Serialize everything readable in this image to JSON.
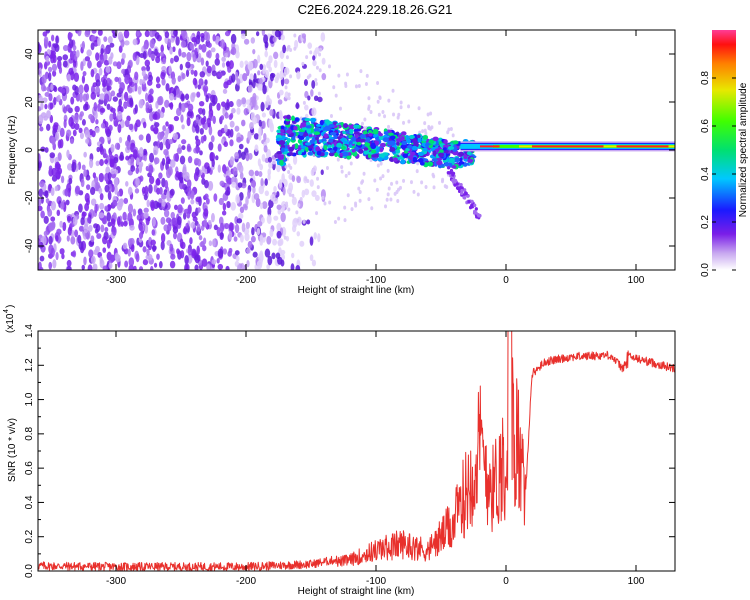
{
  "title": "C2E6.2024.229.18.26.G21",
  "chart_data": [
    {
      "type": "heatmap",
      "xlabel": "Height of straight line (km)",
      "ylabel": "Frequency (Hz)",
      "xlim": [
        -360,
        130
      ],
      "ylim": [
        -50,
        50
      ],
      "xticks": [
        "-300",
        "-200",
        "-100",
        "0",
        "100"
      ],
      "xtick_values": [
        -300,
        -200,
        -100,
        0,
        100
      ],
      "yticks": [
        "-40",
        "-20",
        "0",
        "20",
        "40"
      ],
      "ytick_values": [
        -40,
        -20,
        0,
        20,
        40
      ],
      "colorbar": {
        "label": "Normalized spectral amplitude",
        "range": [
          0,
          1
        ],
        "ticks": [
          "0.0",
          "0.2",
          "0.4",
          "0.6",
          "0.8"
        ],
        "tick_values": [
          0,
          0.2,
          0.4,
          0.6,
          0.8
        ],
        "colormap": "rainbow"
      },
      "features": {
        "noise_region_x": [
          -360,
          -170
        ],
        "signal_trend": [
          {
            "x": -170,
            "y": 6
          },
          {
            "x": -120,
            "y": 4
          },
          {
            "x": -80,
            "y": 1
          },
          {
            "x": -40,
            "y": -2
          },
          {
            "x": -20,
            "y": 0
          },
          {
            "x": 0,
            "y": 1
          },
          {
            "x": 50,
            "y": 1.5
          },
          {
            "x": 130,
            "y": 1.5
          }
        ],
        "steady_tone_hz": 1.5
      }
    },
    {
      "type": "line",
      "xlabel": "Height of straight line (km)",
      "ylabel": "SNR (10 * v/v)",
      "scale_label": "(x10",
      "scale_exponent": "4",
      "xlim": [
        -360,
        130
      ],
      "ylim": [
        0,
        1.4
      ],
      "xticks": [
        "-300",
        "-200",
        "-100",
        "0",
        "100"
      ],
      "xtick_values": [
        -300,
        -200,
        -100,
        0,
        100
      ],
      "yticks": [
        "0.0",
        "0.2",
        "0.4",
        "0.6",
        "0.8",
        "1.0",
        "1.2",
        "1.4"
      ],
      "ytick_values": [
        0,
        0.2,
        0.4,
        0.6,
        0.8,
        1.0,
        1.2,
        1.4
      ],
      "color": "#e8302c",
      "series": [
        {
          "x": [
            -360,
            -300,
            -200,
            -150,
            -120,
            -100,
            -80,
            -60,
            -40,
            -30,
            -20,
            -10,
            0,
            5,
            10,
            15,
            20,
            30,
            50,
            80,
            90,
            95,
            110,
            130
          ],
          "values": [
            0.03,
            0.025,
            0.025,
            0.04,
            0.08,
            0.15,
            0.2,
            0.15,
            0.35,
            0.6,
            0.9,
            0.6,
            0.85,
            1.05,
            0.9,
            0.45,
            1.15,
            1.22,
            1.25,
            1.26,
            1.18,
            1.25,
            1.22,
            1.18
          ]
        }
      ]
    }
  ]
}
